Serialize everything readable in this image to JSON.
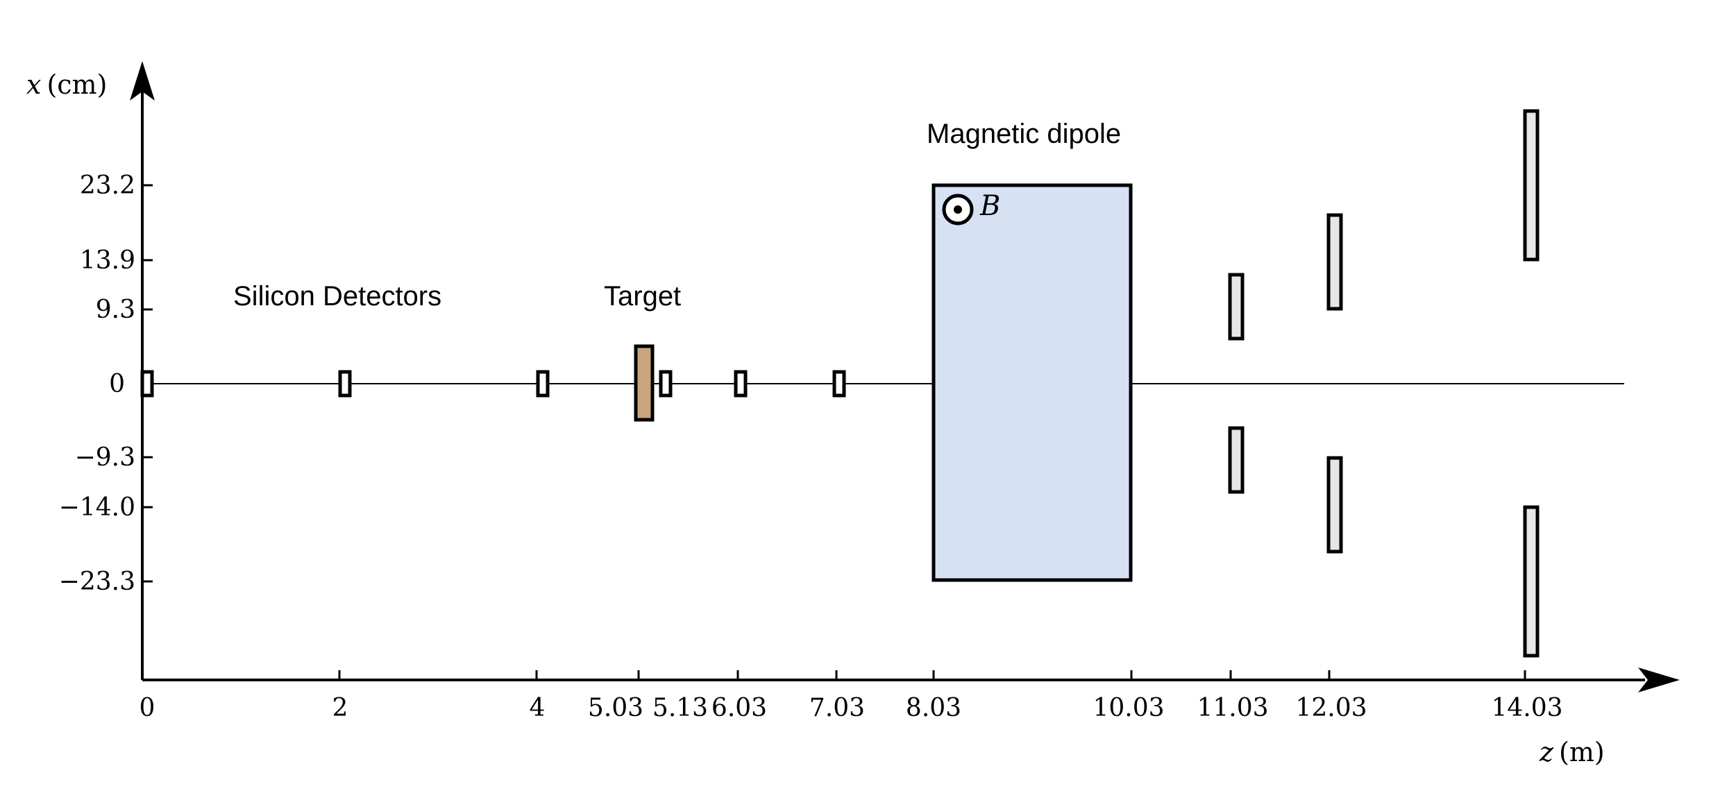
{
  "axes": {
    "x_label_var": "x",
    "x_label_unit": "(cm)",
    "z_label_var": "z",
    "z_label_unit": "(m)"
  },
  "x_ticks": [
    "23.2",
    "13.9",
    "9.3",
    "0",
    "−9.3",
    "−14.0",
    "−23.3"
  ],
  "z_ticks": [
    "0",
    "2",
    "4",
    "5.03",
    "5.13",
    "6.03",
    "7.03",
    "8.03",
    "10.03",
    "11.03",
    "12.03",
    "14.03"
  ],
  "annotations": {
    "silicon": "Silicon Detectors",
    "target": "Target",
    "magnet": "Magnetic dipole",
    "field": "B"
  },
  "colors": {
    "magnet_fill": "#d6e2f3",
    "target_fill": "#c9a47e",
    "detector_fill": "#e6e6e6",
    "small_detector_fill": "#ffffff"
  }
}
